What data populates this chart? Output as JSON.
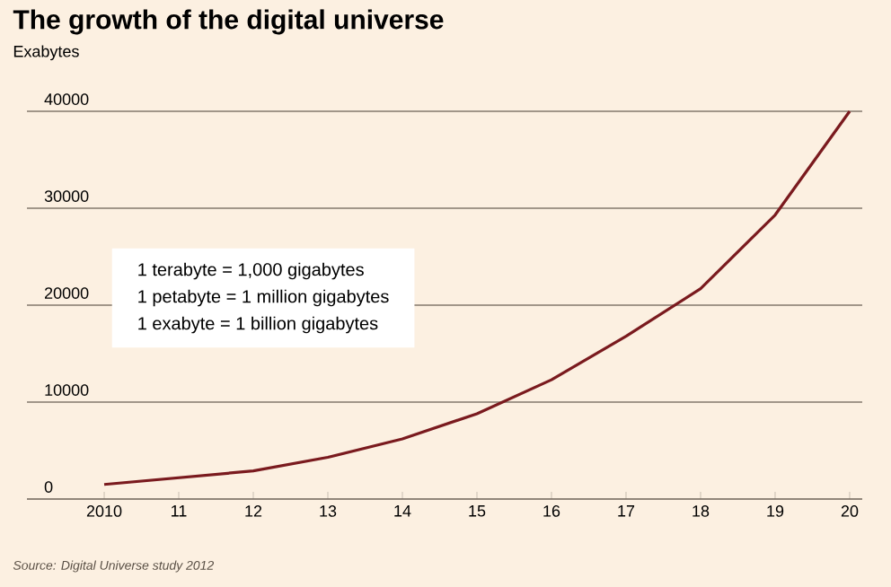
{
  "chart_data": {
    "type": "line",
    "title": "The growth of the digital universe",
    "ylabel": "Exabytes",
    "categories": [
      "2010",
      "11",
      "12",
      "13",
      "14",
      "15",
      "16",
      "17",
      "18",
      "19",
      "20"
    ],
    "series": [
      {
        "color": "#7a1a1e",
        "values": [
          1500,
          2200,
          2900,
          4300,
          6200,
          8800,
          12300,
          16800,
          21700,
          29300,
          40000
        ]
      }
    ],
    "ylim": [
      0,
      40000
    ],
    "yticks": [
      0,
      10000,
      20000,
      30000,
      40000
    ],
    "grid": "y",
    "marker": "none",
    "line_style": "solid",
    "annotations": [
      "1 terabyte = 1,000 gigabytes",
      "1 petabyte = 1 million gigabytes",
      "1 exabyte = 1 billion gigabytes",
      "Source: Digital Universe study 2012"
    ]
  }
}
